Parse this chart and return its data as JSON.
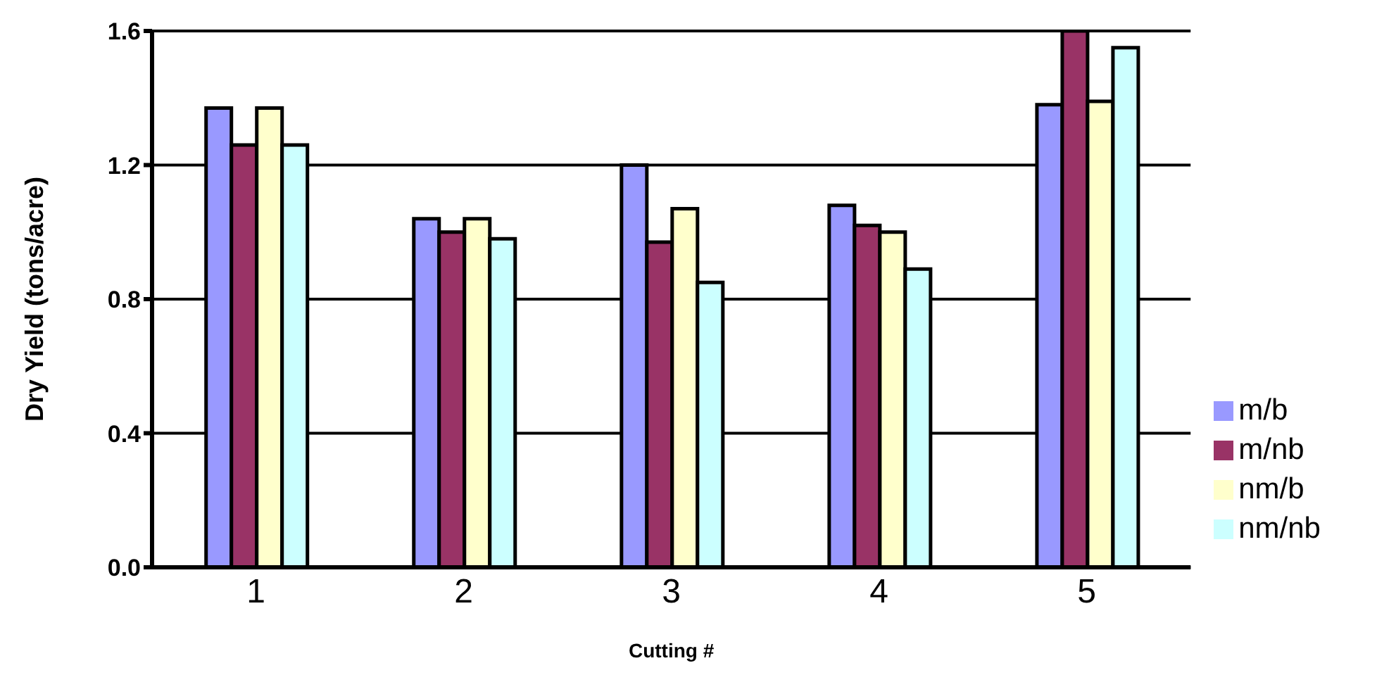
{
  "chart_data": {
    "type": "bar",
    "xlabel": "Cutting #",
    "ylabel": "Dry Yield (tons/acre)",
    "categories": [
      "1",
      "2",
      "3",
      "4",
      "5"
    ],
    "series": [
      {
        "name": "m/b",
        "color": "#9999ff",
        "values": [
          1.37,
          1.04,
          1.2,
          1.08,
          1.38
        ]
      },
      {
        "name": "m/nb",
        "color": "#993366",
        "values": [
          1.26,
          1.0,
          0.97,
          1.02,
          1.6
        ]
      },
      {
        "name": "nm/b",
        "color": "#ffffcc",
        "values": [
          1.37,
          1.04,
          1.07,
          1.0,
          1.39
        ]
      },
      {
        "name": "nm/nb",
        "color": "#ccffff",
        "values": [
          1.26,
          0.98,
          0.85,
          0.89,
          1.55
        ]
      }
    ],
    "ylim": [
      0,
      1.6
    ],
    "yticks": [
      {
        "value": 0,
        "label": "0.0"
      },
      0.4,
      0.8,
      1.2,
      1.6
    ],
    "grid": "y",
    "legend": "right"
  }
}
